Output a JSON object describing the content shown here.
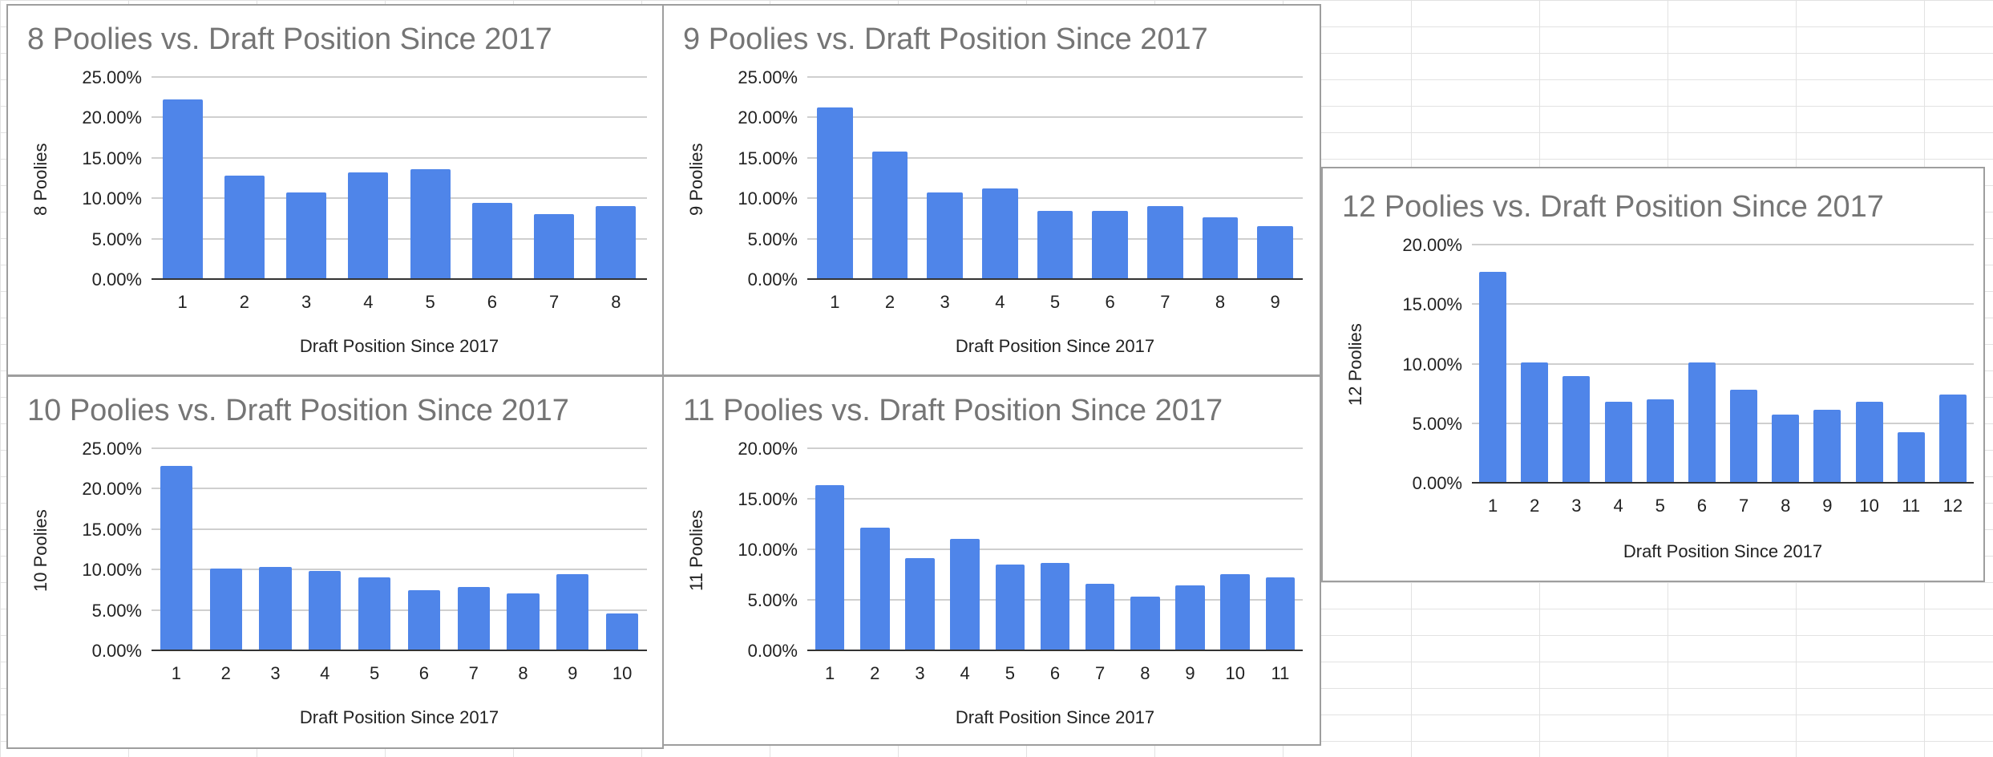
{
  "colors": {
    "bar": "#4f85e9",
    "title": "#757575",
    "grid": "#cfcfcf"
  },
  "chart_data": [
    {
      "id": "c8",
      "type": "bar",
      "title": "8 Poolies vs. Draft Position Since 2017",
      "xlabel": "Draft Position Since 2017",
      "ylabel": "8 Poolies",
      "categories": [
        "1",
        "2",
        "3",
        "4",
        "5",
        "6",
        "7",
        "8"
      ],
      "values": [
        22.3,
        12.9,
        10.8,
        13.3,
        13.7,
        9.5,
        8.1,
        9.1
      ],
      "ylim": [
        0,
        25
      ],
      "yticks": [
        "0.00%",
        "5.00%",
        "10.00%",
        "15.00%",
        "20.00%",
        "25.00%"
      ],
      "grid": true
    },
    {
      "id": "c9",
      "type": "bar",
      "title": "9 Poolies vs. Draft Position Since 2017",
      "xlabel": "Draft Position Since 2017",
      "ylabel": "9 Poolies",
      "categories": [
        "1",
        "2",
        "3",
        "4",
        "5",
        "6",
        "7",
        "8",
        "9"
      ],
      "values": [
        21.3,
        15.9,
        10.8,
        11.3,
        8.5,
        8.5,
        9.1,
        7.7,
        6.6
      ],
      "ylim": [
        0,
        25
      ],
      "yticks": [
        "0.00%",
        "5.00%",
        "10.00%",
        "15.00%",
        "20.00%",
        "25.00%"
      ],
      "grid": true
    },
    {
      "id": "c10",
      "type": "bar",
      "title": "10 Poolies vs. Draft Position Since 2017",
      "xlabel": "Draft Position Since 2017",
      "ylabel": "10 Poolies",
      "categories": [
        "1",
        "2",
        "3",
        "4",
        "5",
        "6",
        "7",
        "8",
        "9",
        "10"
      ],
      "values": [
        22.9,
        10.2,
        10.4,
        9.9,
        9.1,
        7.5,
        7.9,
        7.1,
        9.5,
        4.7
      ],
      "ylim": [
        0,
        25
      ],
      "yticks": [
        "0.00%",
        "5.00%",
        "10.00%",
        "15.00%",
        "20.00%",
        "25.00%"
      ],
      "grid": true
    },
    {
      "id": "c11",
      "type": "bar",
      "title": "11 Poolies vs. Draft Position Since 2017",
      "xlabel": "Draft Position Since 2017",
      "ylabel": "11 Poolies",
      "categories": [
        "1",
        "2",
        "3",
        "4",
        "5",
        "6",
        "7",
        "8",
        "9",
        "10",
        "11"
      ],
      "values": [
        16.4,
        12.2,
        9.2,
        11.1,
        8.6,
        8.7,
        6.7,
        5.4,
        6.5,
        7.6,
        7.3
      ],
      "ylim": [
        0,
        20
      ],
      "yticks": [
        "0.00%",
        "5.00%",
        "10.00%",
        "15.00%",
        "20.00%"
      ],
      "grid": true
    },
    {
      "id": "c12",
      "type": "bar",
      "title": "12 Poolies vs. Draft Position Since 2017",
      "xlabel": "Draft Position Since 2017",
      "ylabel": "12 Poolies",
      "categories": [
        "1",
        "2",
        "3",
        "4",
        "5",
        "6",
        "7",
        "8",
        "9",
        "10",
        "11",
        "12"
      ],
      "values": [
        17.8,
        10.2,
        9.0,
        6.9,
        7.1,
        10.2,
        7.9,
        5.8,
        6.2,
        6.9,
        4.3,
        7.5
      ],
      "ylim": [
        0,
        20
      ],
      "yticks": [
        "0.00%",
        "5.00%",
        "10.00%",
        "15.00%",
        "20.00%"
      ],
      "grid": true
    }
  ]
}
